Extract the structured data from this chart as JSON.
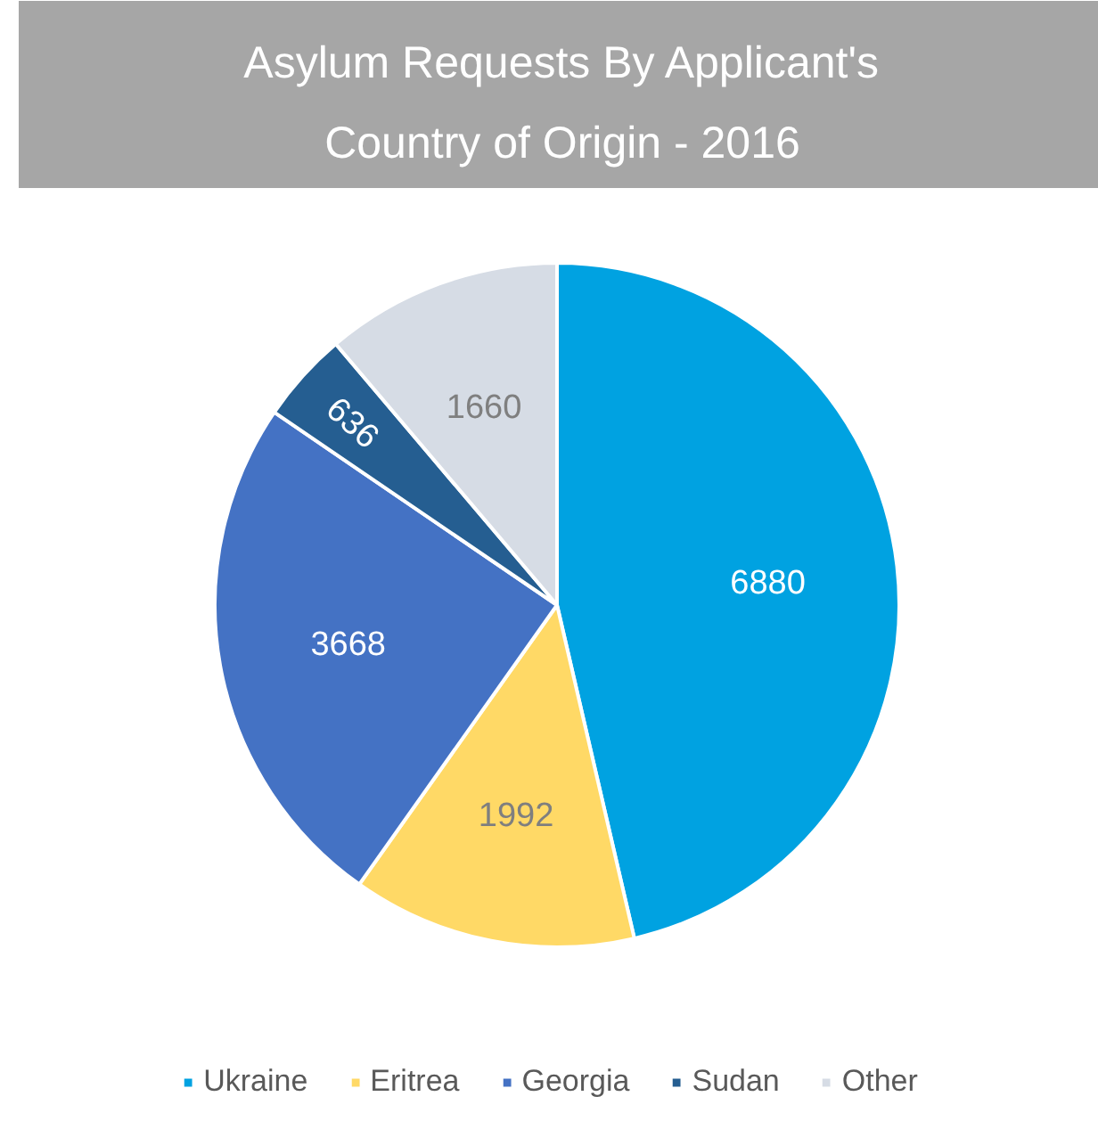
{
  "chart_data": {
    "type": "pie",
    "title": "Asylum Requests By Applicant's Country of Origin - 2016",
    "categories": [
      "Ukraine",
      "Eritrea",
      "Georgia",
      "Sudan",
      "Other"
    ],
    "values": [
      6880,
      1992,
      3668,
      636,
      1660
    ],
    "colors": [
      "#00a2e1",
      "#ffd966",
      "#4472c4",
      "#255e91",
      "#d6dce5"
    ],
    "data_labels": true,
    "legend": "bottom"
  }
}
